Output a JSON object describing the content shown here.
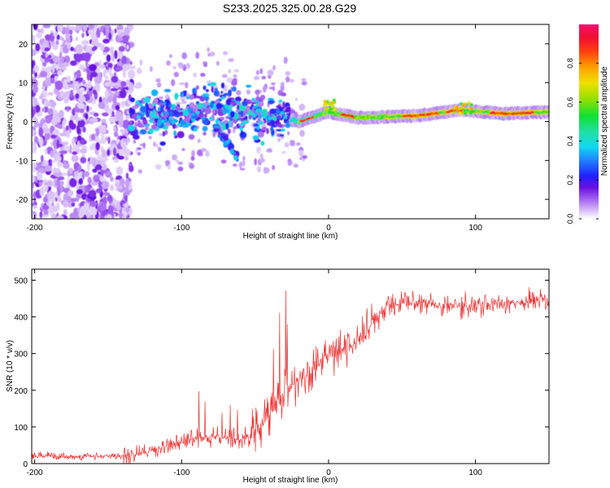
{
  "title": "S233.2025.325.00.28.G29",
  "chart_data": [
    {
      "type": "heatmap",
      "xlabel": "Height of straight line (km)",
      "ylabel": "Frequency (Hz)",
      "xlim": [
        -202,
        150
      ],
      "ylim": [
        -25,
        25
      ],
      "xticks": [
        -200,
        -100,
        0,
        100
      ],
      "xtick_labels": [
        "-200",
        "-100",
        "0",
        "100"
      ],
      "yticks": [
        -20,
        -10,
        0,
        10,
        20
      ],
      "ytick_labels": [
        "-20",
        "-10",
        "0",
        "10",
        "20"
      ],
      "colorbar": {
        "label": "Normalized spectral amplitude",
        "range": [
          0,
          1
        ],
        "ticks": [
          0.0,
          0.2,
          0.4,
          0.6,
          0.8
        ],
        "tick_labels": [
          "0.0",
          "0.2",
          "0.4",
          "0.6",
          "0.8"
        ]
      },
      "ridge": {
        "description_points": [
          {
            "x": -130,
            "f": 1.5
          },
          {
            "x": -100,
            "f": 2
          },
          {
            "x": -80,
            "f": 4
          },
          {
            "x": -60,
            "f": 2
          },
          {
            "x": -40,
            "f": 2
          },
          {
            "x": -20,
            "f": 0
          },
          {
            "x": 0,
            "f": 2.5
          },
          {
            "x": 20,
            "f": 1
          },
          {
            "x": 60,
            "f": 1.5
          },
          {
            "x": 90,
            "f": 3
          },
          {
            "x": 120,
            "f": 2
          },
          {
            "x": 150,
            "f": 2.5
          }
        ]
      }
    },
    {
      "type": "line",
      "xlabel": "Height of straight line (km)",
      "ylabel": "SNR (10 * v/v)",
      "xlim": [
        -202,
        150
      ],
      "ylim": [
        0,
        530
      ],
      "xticks": [
        -200,
        -100,
        0,
        100
      ],
      "xtick_labels": [
        "-200",
        "-100",
        "0",
        "100"
      ],
      "yticks": [
        0,
        100,
        200,
        300,
        400,
        500
      ],
      "ytick_labels": [
        "0",
        "100",
        "200",
        "300",
        "400",
        "500"
      ],
      "color": "#ee3333",
      "trend": [
        {
          "x": -202,
          "y": 20
        },
        {
          "x": -140,
          "y": 20
        },
        {
          "x": -120,
          "y": 35
        },
        {
          "x": -100,
          "y": 60
        },
        {
          "x": -80,
          "y": 75
        },
        {
          "x": -60,
          "y": 65
        },
        {
          "x": -45,
          "y": 110
        },
        {
          "x": -30,
          "y": 200
        },
        {
          "x": -15,
          "y": 240
        },
        {
          "x": 0,
          "y": 290
        },
        {
          "x": 10,
          "y": 310
        },
        {
          "x": 20,
          "y": 330
        },
        {
          "x": 30,
          "y": 380
        },
        {
          "x": 40,
          "y": 430
        },
        {
          "x": 60,
          "y": 440
        },
        {
          "x": 80,
          "y": 435
        },
        {
          "x": 100,
          "y": 425
        },
        {
          "x": 120,
          "y": 440
        },
        {
          "x": 150,
          "y": 445
        }
      ]
    }
  ]
}
